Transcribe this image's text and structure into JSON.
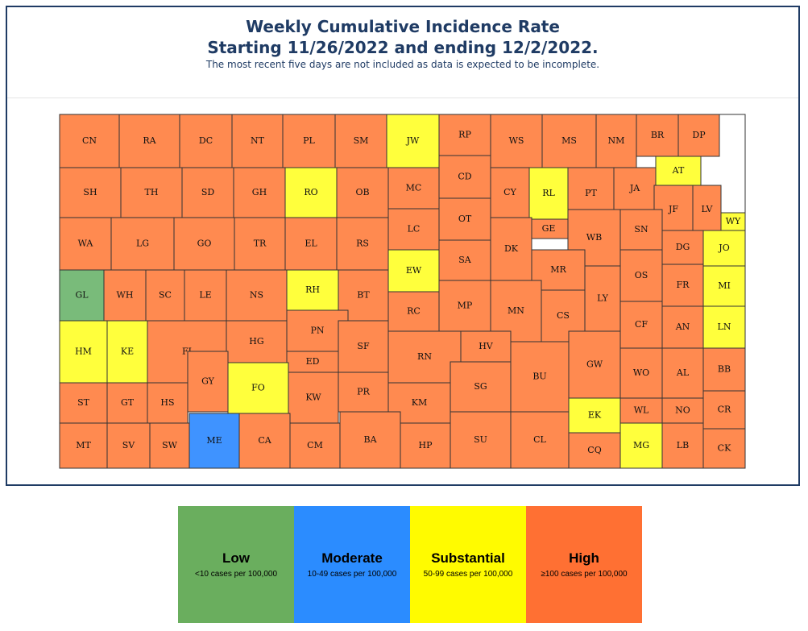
{
  "title_line1": "Weekly Cumulative Incidence Rate",
  "title_line2": "Starting 11/26/2022 and ending 12/2/2022.",
  "subtitle": "The most recent five days are not included as data is expected to be incomplete.",
  "colors": {
    "Low": "#79bb7a",
    "Moderate": "#3f93ff",
    "Substantial": "#ffff3c",
    "High": "#ff8a50"
  },
  "legend": [
    {
      "label": "Low",
      "desc": "<10 cases per 100,000",
      "color": "#6aae5e"
    },
    {
      "label": "Moderate",
      "desc": "10-49 cases per 100,000",
      "color": "#2b8cff"
    },
    {
      "label": "Substantial",
      "desc": "50-99 cases per 100,000",
      "color": "#fffb00"
    },
    {
      "label": "High",
      "desc": "≥100 cases per 100,000",
      "color": "#ff7033"
    }
  ],
  "counties": [
    {
      "code": "CN",
      "level": "High"
    },
    {
      "code": "RA",
      "level": "High"
    },
    {
      "code": "DC",
      "level": "High"
    },
    {
      "code": "NT",
      "level": "High"
    },
    {
      "code": "PL",
      "level": "High"
    },
    {
      "code": "SM",
      "level": "High"
    },
    {
      "code": "JW",
      "level": "Substantial"
    },
    {
      "code": "RP",
      "level": "High"
    },
    {
      "code": "WS",
      "level": "High"
    },
    {
      "code": "MS",
      "level": "High"
    },
    {
      "code": "NM",
      "level": "High"
    },
    {
      "code": "BR",
      "level": "High"
    },
    {
      "code": "DP",
      "level": "High"
    },
    {
      "code": "SH",
      "level": "High"
    },
    {
      "code": "TH",
      "level": "High"
    },
    {
      "code": "SD",
      "level": "High"
    },
    {
      "code": "GH",
      "level": "High"
    },
    {
      "code": "RO",
      "level": "Substantial"
    },
    {
      "code": "OB",
      "level": "High"
    },
    {
      "code": "MC",
      "level": "High"
    },
    {
      "code": "CD",
      "level": "High"
    },
    {
      "code": "CY",
      "level": "High"
    },
    {
      "code": "RL",
      "level": "Substantial"
    },
    {
      "code": "PT",
      "level": "High"
    },
    {
      "code": "JA",
      "level": "High"
    },
    {
      "code": "AT",
      "level": "Substantial"
    },
    {
      "code": "JF",
      "level": "High"
    },
    {
      "code": "LV",
      "level": "High"
    },
    {
      "code": "WY",
      "level": "Substantial"
    },
    {
      "code": "OT",
      "level": "High"
    },
    {
      "code": "GE",
      "level": "High"
    },
    {
      "code": "WB",
      "level": "High"
    },
    {
      "code": "SN",
      "level": "High"
    },
    {
      "code": "DG",
      "level": "High"
    },
    {
      "code": "JO",
      "level": "Substantial"
    },
    {
      "code": "WA",
      "level": "High"
    },
    {
      "code": "LG",
      "level": "High"
    },
    {
      "code": "GO",
      "level": "High"
    },
    {
      "code": "TR",
      "level": "High"
    },
    {
      "code": "EL",
      "level": "High"
    },
    {
      "code": "RS",
      "level": "High"
    },
    {
      "code": "LC",
      "level": "High"
    },
    {
      "code": "SA",
      "level": "High"
    },
    {
      "code": "DK",
      "level": "High"
    },
    {
      "code": "MR",
      "level": "High"
    },
    {
      "code": "OS",
      "level": "High"
    },
    {
      "code": "FR",
      "level": "High"
    },
    {
      "code": "MI",
      "level": "Substantial"
    },
    {
      "code": "GL",
      "level": "Low"
    },
    {
      "code": "WH",
      "level": "High"
    },
    {
      "code": "SC",
      "level": "High"
    },
    {
      "code": "LE",
      "level": "High"
    },
    {
      "code": "NS",
      "level": "High"
    },
    {
      "code": "RH",
      "level": "Substantial"
    },
    {
      "code": "BT",
      "level": "High"
    },
    {
      "code": "EW",
      "level": "Substantial"
    },
    {
      "code": "RC",
      "level": "High"
    },
    {
      "code": "MP",
      "level": "High"
    },
    {
      "code": "MN",
      "level": "High"
    },
    {
      "code": "CS",
      "level": "High"
    },
    {
      "code": "LY",
      "level": "High"
    },
    {
      "code": "CF",
      "level": "High"
    },
    {
      "code": "AN",
      "level": "High"
    },
    {
      "code": "LN",
      "level": "Substantial"
    },
    {
      "code": "HM",
      "level": "Substantial"
    },
    {
      "code": "KE",
      "level": "Substantial"
    },
    {
      "code": "FI",
      "level": "High"
    },
    {
      "code": "HG",
      "level": "High"
    },
    {
      "code": "PN",
      "level": "High"
    },
    {
      "code": "SF",
      "level": "High"
    },
    {
      "code": "RN",
      "level": "High"
    },
    {
      "code": "HV",
      "level": "High"
    },
    {
      "code": "BU",
      "level": "High"
    },
    {
      "code": "GW",
      "level": "High"
    },
    {
      "code": "WO",
      "level": "High"
    },
    {
      "code": "AL",
      "level": "High"
    },
    {
      "code": "BB",
      "level": "High"
    },
    {
      "code": "GY",
      "level": "High"
    },
    {
      "code": "ED",
      "level": "High"
    },
    {
      "code": "FO",
      "level": "Substantial"
    },
    {
      "code": "ST",
      "level": "High"
    },
    {
      "code": "GT",
      "level": "High"
    },
    {
      "code": "HS",
      "level": "High"
    },
    {
      "code": "KW",
      "level": "High"
    },
    {
      "code": "PR",
      "level": "High"
    },
    {
      "code": "KM",
      "level": "High"
    },
    {
      "code": "SG",
      "level": "High"
    },
    {
      "code": "EK",
      "level": "Substantial"
    },
    {
      "code": "WL",
      "level": "High"
    },
    {
      "code": "NO",
      "level": "High"
    },
    {
      "code": "CR",
      "level": "High"
    },
    {
      "code": "MT",
      "level": "High"
    },
    {
      "code": "SV",
      "level": "High"
    },
    {
      "code": "SW",
      "level": "High"
    },
    {
      "code": "ME",
      "level": "Moderate"
    },
    {
      "code": "CA",
      "level": "High"
    },
    {
      "code": "CM",
      "level": "High"
    },
    {
      "code": "BA",
      "level": "High"
    },
    {
      "code": "HP",
      "level": "High"
    },
    {
      "code": "SU",
      "level": "High"
    },
    {
      "code": "CL",
      "level": "High"
    },
    {
      "code": "CQ",
      "level": "High"
    },
    {
      "code": "MG",
      "level": "Substantial"
    },
    {
      "code": "LB",
      "level": "High"
    },
    {
      "code": "CK",
      "level": "High"
    }
  ]
}
